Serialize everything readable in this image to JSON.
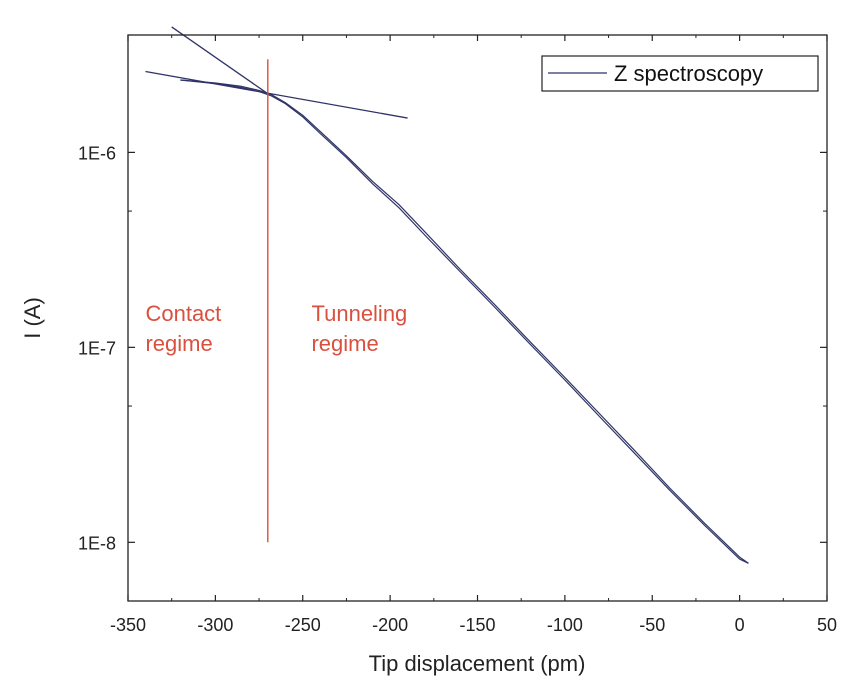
{
  "colors": {
    "series": "#2f3367",
    "annotation": "#d9503f",
    "axis": "#222222"
  },
  "chart_data": {
    "type": "line",
    "xlabel": "Tip displacement (pm)",
    "ylabel": "I (A)",
    "xlim": [
      -350,
      50
    ],
    "ylim": [
      5e-09,
      4e-06
    ],
    "yscale": "log",
    "grid": false,
    "legend_position": "top-right",
    "x_ticks": [
      -350,
      -300,
      -250,
      -200,
      -150,
      -100,
      -50,
      0,
      50
    ],
    "x_tick_labels": [
      "-350",
      "-300",
      "-250",
      "-200",
      "-150",
      "-100",
      "-50",
      "0",
      "50"
    ],
    "y_ticks": [
      1e-08,
      1e-07,
      1e-06
    ],
    "y_tick_labels": [
      "1E-8",
      "1E-7",
      "1E-6"
    ],
    "series": [
      {
        "name": "Z spectroscopy",
        "x": [
          -320,
          -300,
          -285,
          -275,
          -268,
          -260,
          -250,
          -240,
          -225,
          -210,
          -195,
          -180,
          -160,
          -140,
          -120,
          -100,
          -80,
          -60,
          -40,
          -20,
          0,
          5
        ],
        "y": [
          2.35e-06,
          2.25e-06,
          2.15e-06,
          2.05e-06,
          1.95e-06,
          1.78e-06,
          1.52e-06,
          1.25e-06,
          9.4e-07,
          6.9e-07,
          5.2e-07,
          3.75e-07,
          2.45e-07,
          1.6e-07,
          1.04e-07,
          6.8e-08,
          4.4e-08,
          2.85e-08,
          1.85e-08,
          1.22e-08,
          8.2e-09,
          7.8e-09
        ]
      },
      {
        "name": "",
        "x": [
          -320,
          -300,
          -285,
          -275,
          -268,
          -260,
          -250,
          -240,
          -225,
          -210,
          -195,
          -180,
          -160,
          -140,
          -120,
          -100,
          -80,
          -60,
          -40,
          -20,
          0,
          5
        ],
        "y": [
          2.35e-06,
          2.27e-06,
          2.18e-06,
          2.08e-06,
          1.98e-06,
          1.8e-06,
          1.55e-06,
          1.28e-06,
          9.6e-07,
          7.1e-07,
          5.4e-07,
          3.9e-07,
          2.52e-07,
          1.65e-07,
          1.07e-07,
          7e-08,
          4.55e-08,
          2.95e-08,
          1.9e-08,
          1.25e-08,
          8.4e-09,
          7.8e-09
        ]
      }
    ],
    "fit_lines": [
      {
        "x": [
          -340,
          -190
        ],
        "y": [
          2.6e-06,
          1.5e-06
        ]
      },
      {
        "x": [
          -325,
          -270
        ],
        "y": [
          4.4e-06,
          2e-06
        ]
      }
    ],
    "vertical_line": {
      "x": -270,
      "y": [
        1e-08,
        3e-06
      ]
    },
    "annotations": [
      {
        "lines": [
          "Contact",
          "regime"
        ],
        "x": -340,
        "y": 1.3e-07
      },
      {
        "lines": [
          "Tunneling",
          "regime"
        ],
        "x": -245,
        "y": 1.3e-07
      }
    ]
  }
}
